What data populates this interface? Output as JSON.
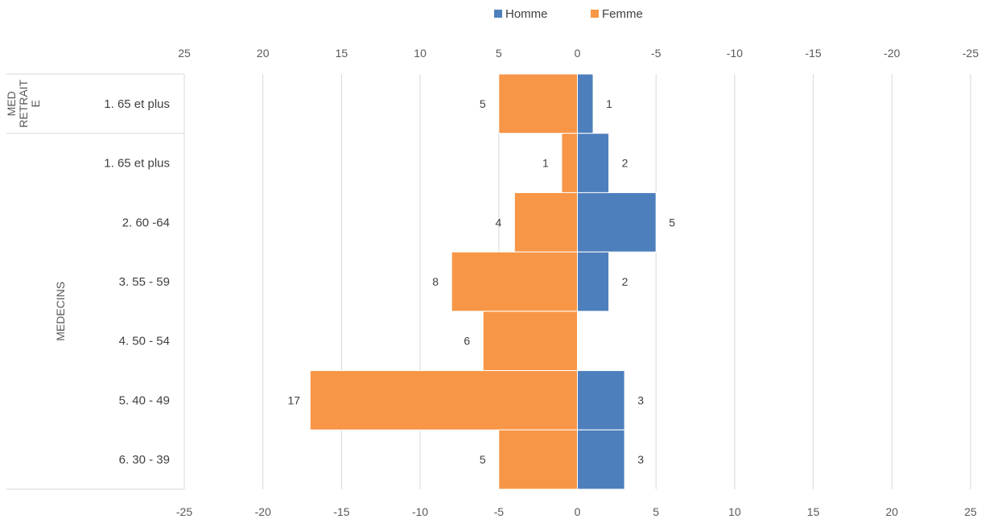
{
  "chart_data": {
    "type": "bar",
    "orientation": "horizontal",
    "categories": [
      "1. 65 et plus",
      "1. 65 et plus",
      "2. 60 -64",
      "3. 55 - 59",
      "4. 50 - 54",
      "5. 40 - 49",
      "6. 30 - 39"
    ],
    "groups": [
      {
        "label": "MED RETRAITE",
        "lines": [
          "MED",
          "RETRAIT",
          "E"
        ],
        "categories": [
          0
        ]
      },
      {
        "label": "MEDECINS",
        "lines": [
          "MEDECINS"
        ],
        "categories": [
          1,
          2,
          3,
          4,
          5,
          6
        ]
      }
    ],
    "series": [
      {
        "name": "Homme",
        "color": "#4E7FBD",
        "values": [
          1,
          2,
          5,
          2,
          0,
          3,
          3
        ],
        "labels": [
          "1",
          "2",
          "5",
          "2",
          "",
          "3",
          "3"
        ]
      },
      {
        "name": "Femme",
        "color": "#F79646",
        "values": [
          -5,
          -1,
          -4,
          -8,
          -6,
          -17,
          -5
        ],
        "labels": [
          "5",
          "1",
          "4",
          "8",
          "6",
          "17",
          "5"
        ]
      }
    ],
    "bottom_axis": {
      "ticks": [
        "-25",
        "-20",
        "-15",
        "-10",
        "-5",
        "0",
        "5",
        "10",
        "15",
        "20",
        "25"
      ],
      "range": [
        -25,
        25
      ]
    },
    "top_axis": {
      "ticks": [
        "25",
        "20",
        "15",
        "10",
        "5",
        "0",
        "-5",
        "-10",
        "-15",
        "-20",
        "-25"
      ],
      "reversed": true
    },
    "xlim": [
      -25,
      25
    ],
    "grid": true,
    "legend": "top"
  }
}
